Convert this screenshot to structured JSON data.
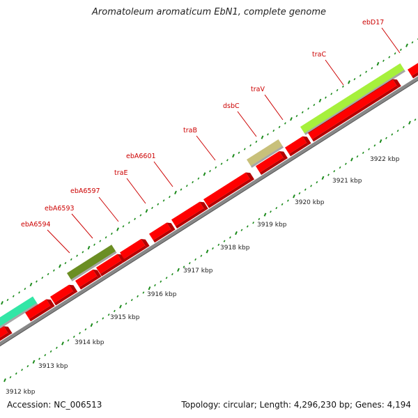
{
  "title": "Aromatoleum aromaticum EbN1, complete genome",
  "footer": {
    "accession": "Accession: NC_006513",
    "summary": "Topology: circular; Length: 4,296,230 bp; Genes: 4,194"
  },
  "colors": {
    "gene_red": "#ff0000",
    "gene_red_dark": "#b40000",
    "backbone": "#888888",
    "tick_green": "#1a8a1a",
    "label_red": "#cc0000",
    "feature_teal": "#33e6a6",
    "feature_olive": "#6b8e23",
    "feature_khaki": "#c8c07a",
    "feature_lime": "#a6f03c"
  },
  "kbp_labels": [
    "3912 kbp",
    "3913 kbp",
    "3914 kbp",
    "3915 kbp",
    "3916 kbp",
    "3917 kbp",
    "3918 kbp",
    "3919 kbp",
    "3920 kbp",
    "3921 kbp",
    "3922 kbp"
  ],
  "gene_labels": [
    "ebA6594",
    "ebA6593",
    "ebA6597",
    "traE",
    "ebA6601",
    "traB",
    "dsbC",
    "traV",
    "traC",
    "ebD17"
  ]
}
